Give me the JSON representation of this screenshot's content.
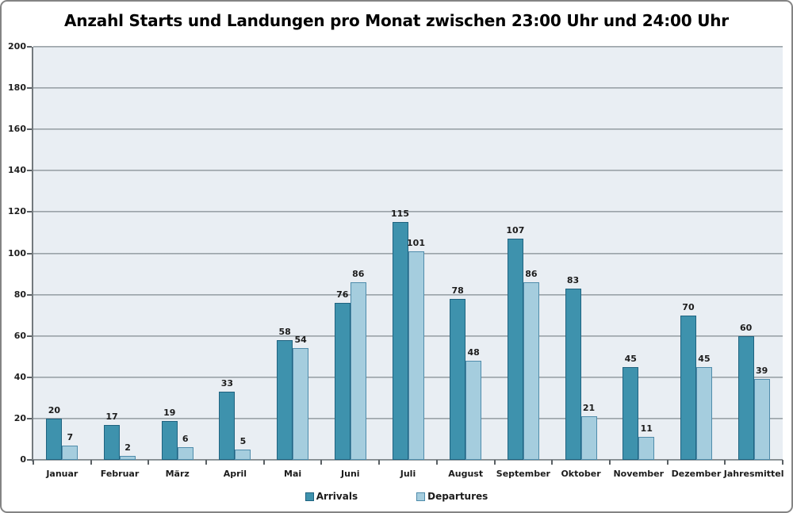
{
  "title": "Anzahl Starts und Landungen pro Monat zwischen 23:00 Uhr und 24:00 Uhr",
  "colors": {
    "plot_background": "#e9eef3",
    "gridline": "#8f989d",
    "axis": "#5a6064",
    "arrivals_fill": "#3e92ad",
    "arrivals_border": "#1f6380",
    "departures_fill": "#a5cdde",
    "departures_border": "#4f8cab",
    "text": "#1c1c1c"
  },
  "chart_data": {
    "type": "bar",
    "title": "Anzahl Starts und Landungen pro Monat zwischen 23:00 Uhr und 24:00 Uhr",
    "categories": [
      "Januar",
      "Februar",
      "März",
      "April",
      "Mai",
      "Juni",
      "Juli",
      "August",
      "September",
      "Oktober",
      "November",
      "Dezember",
      "Jahresmittel"
    ],
    "series": [
      {
        "name": "Arrivals",
        "values": [
          20,
          17,
          19,
          33,
          58,
          76,
          115,
          78,
          107,
          83,
          45,
          70,
          60
        ],
        "fill": "#3e92ad",
        "border": "#1f6380"
      },
      {
        "name": "Departures",
        "values": [
          7,
          2,
          6,
          5,
          54,
          86,
          101,
          48,
          86,
          21,
          11,
          45,
          39
        ],
        "fill": "#a5cdde",
        "border": "#4f8cab"
      }
    ],
    "xlabel": "",
    "ylabel": "",
    "ylim": [
      0,
      200
    ],
    "ytick_step": 20,
    "yticks": [
      0,
      20,
      40,
      60,
      80,
      100,
      120,
      140,
      160,
      180,
      200
    ],
    "grid": true,
    "legend_position": "bottom",
    "data_labels": true
  }
}
